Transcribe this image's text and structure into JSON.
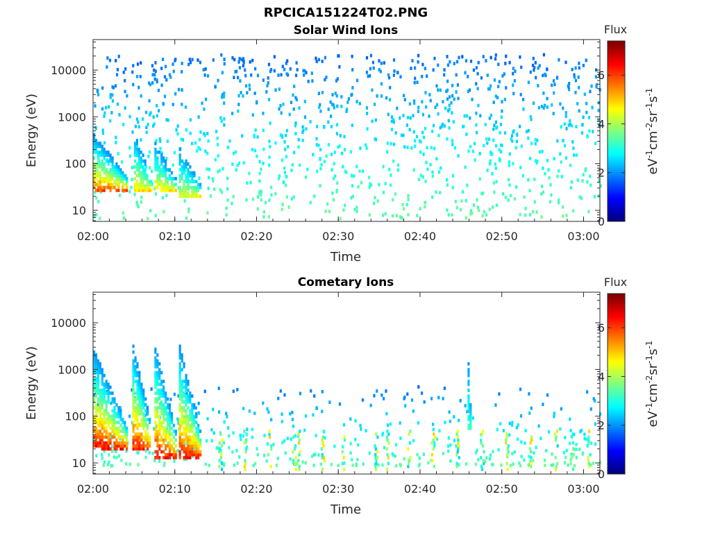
{
  "title": "RPCICA151224T02.PNG",
  "colorbar": {
    "title": "Flux",
    "unit_label": "eV-1cm-2sr-1s-1",
    "range": [
      0,
      7.4
    ],
    "ticks": [
      "0",
      "2",
      "4",
      "6"
    ],
    "colormap": "jet"
  },
  "chart_data": [
    {
      "type": "heatmap",
      "title": "Solar Wind Ions",
      "xlabel": "Time",
      "ylabel": "Energy (eV)",
      "xlim": [
        "02:00",
        "03:02"
      ],
      "ylim": [
        5.8,
        45000
      ],
      "yscale": "log",
      "x_ticks": [
        "02:00",
        "02:10",
        "02:20",
        "02:30",
        "02:40",
        "02:50",
        "03:00"
      ],
      "y_ticks": [
        10,
        100,
        1000,
        10000
      ],
      "y_tick_labels": [
        "10",
        "100",
        "1000",
        "10000"
      ],
      "features": [
        {
          "start_min": 0.0,
          "end_min": 4.0,
          "peak_min": 2.0,
          "e_low": 25,
          "e_high": 400,
          "peak_flux": 6.2
        },
        {
          "start_min": 5.0,
          "end_min": 7.0,
          "peak_min": 5.5,
          "e_low": 25,
          "e_high": 400,
          "peak_flux": 5.2
        },
        {
          "start_min": 7.5,
          "end_min": 10.0,
          "peak_min": 8.0,
          "e_low": 25,
          "e_high": 250,
          "peak_flux": 5.0
        },
        {
          "start_min": 10.5,
          "end_min": 13.0,
          "peak_min": 11.5,
          "e_low": 20,
          "e_high": 200,
          "peak_flux": 4.5
        }
      ],
      "background": {
        "e_low": 6,
        "e_high": 20000,
        "flux_min": 1.7,
        "flux_max": 3.5,
        "note_scatter": "sparse"
      }
    },
    {
      "type": "heatmap",
      "title": "Cometary Ions",
      "xlabel": "Time",
      "ylabel": "Energy (eV)",
      "xlim": [
        "02:00",
        "03:02"
      ],
      "ylim": [
        5.8,
        45000
      ],
      "yscale": "log",
      "x_ticks": [
        "02:00",
        "02:10",
        "02:20",
        "02:30",
        "02:40",
        "02:50",
        "03:00"
      ],
      "y_ticks": [
        10,
        100,
        1000,
        10000
      ],
      "y_tick_labels": [
        "10",
        "100",
        "1000",
        "10000"
      ],
      "features": [
        {
          "start_min": 0.0,
          "end_min": 4.0,
          "peak_min": 2.5,
          "e_low": 18,
          "e_high": 2500,
          "peak_flux": 7.0
        },
        {
          "start_min": 4.8,
          "end_min": 7.0,
          "peak_min": 5.5,
          "e_low": 18,
          "e_high": 3000,
          "peak_flux": 6.8
        },
        {
          "start_min": 7.5,
          "end_min": 10.0,
          "peak_min": 8.5,
          "e_low": 12,
          "e_high": 3000,
          "peak_flux": 6.8
        },
        {
          "start_min": 10.5,
          "end_min": 13.0,
          "peak_min": 11.5,
          "e_low": 12,
          "e_high": 3000,
          "peak_flux": 6.8
        },
        {
          "start_min": 45.8,
          "end_min": 46.1,
          "peak_min": 46.0,
          "e_low": 50,
          "e_high": 1600,
          "peak_flux": 3.5
        }
      ],
      "spikes_min": [
        15.5,
        18.5,
        21.5,
        24.5,
        25.0,
        28.0,
        30.5,
        34.5,
        36.0,
        38.5,
        41.5,
        44.5,
        47.5,
        50.5,
        53.5,
        56.5,
        58.5,
        60.5
      ],
      "background": {
        "e_low": 8,
        "e_high": 400,
        "flux_min": 1.8,
        "flux_max": 3.4,
        "note_scatter": "sparse"
      }
    }
  ]
}
